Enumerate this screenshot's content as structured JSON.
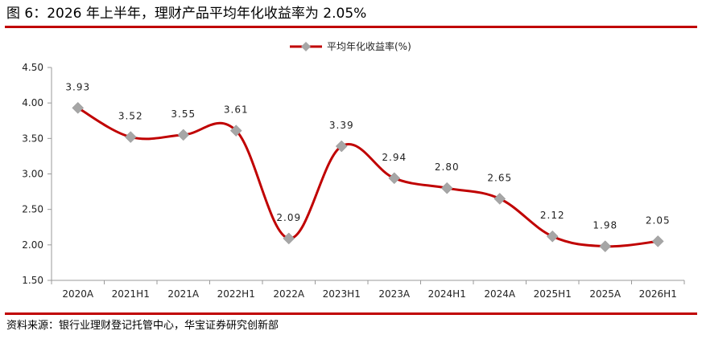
{
  "figure_title": "图 6：2026 年上半年，理财产品平均年化收益率为 2.05%",
  "source": "资料来源：银行业理财登记托管中心，华宝证券研究创新部",
  "chart_data": {
    "type": "line",
    "title": "",
    "xlabel": "",
    "ylabel": "",
    "categories": [
      "2020A",
      "2021H1",
      "2021A",
      "2022H1",
      "2022A",
      "2023H1",
      "2023A",
      "2024H1",
      "2024A",
      "2025H1",
      "2025A",
      "2026H1"
    ],
    "series": [
      {
        "name": "平均年化收益率(%)",
        "values": [
          3.93,
          3.52,
          3.55,
          3.61,
          2.09,
          3.39,
          2.94,
          2.8,
          2.65,
          2.12,
          1.98,
          2.05
        ],
        "labels": [
          "3.93",
          "3.52",
          "3.55",
          "3.61",
          "2.09",
          "3.39",
          "2.94",
          "2.80",
          "2.65",
          "2.12",
          "1.98",
          "2.05"
        ],
        "line_color": "#c00000",
        "marker_color": "#a6a6a6",
        "marker": "diamond",
        "smooth": true
      }
    ],
    "ylim": [
      1.5,
      4.5
    ],
    "yticks": [
      "1.50",
      "2.00",
      "2.50",
      "3.00",
      "3.50",
      "4.00",
      "4.50"
    ],
    "grid": false,
    "legend_position": "top-center"
  }
}
